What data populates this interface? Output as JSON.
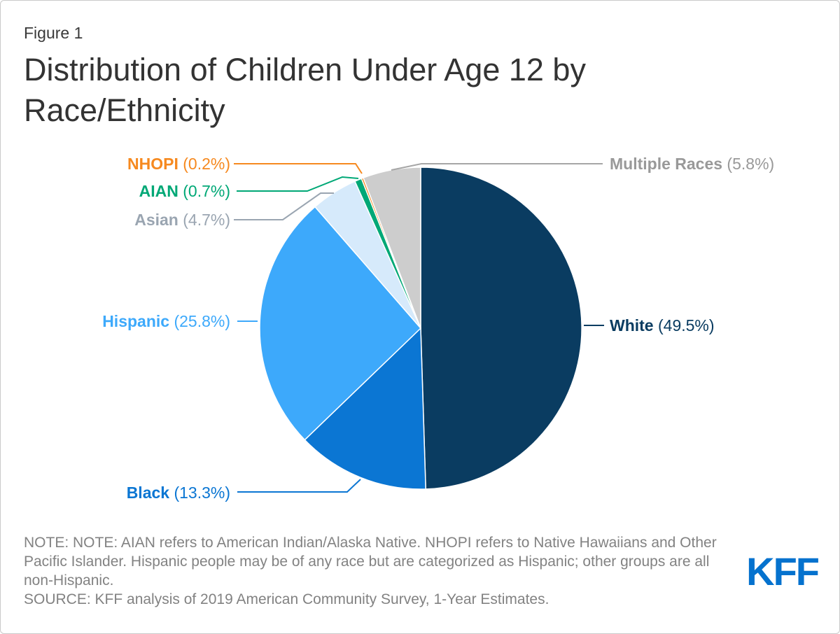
{
  "figure_label": "Figure 1",
  "title": "Distribution of Children Under Age 12 by Race/Ethnicity",
  "note": "NOTE: NOTE: AIAN refers to American Indian/Alaska Native. NHOPI refers to Native Hawaiians and Other Pacific Islander. Hispanic people may be of any race but are categorized as Hispanic; other groups are all non-Hispanic.",
  "source": "SOURCE: KFF analysis of 2019 American Community Survey, 1-Year Estimates.",
  "logo_text": "KFF",
  "colors": {
    "logo_blue": "#0572CE",
    "title_text": "#333333",
    "note_text": "#828282",
    "frame_border": "#C9C9C9",
    "slice_stroke": "#FFFFFF"
  },
  "chart_data": {
    "type": "pie",
    "title": "Distribution of Children Under Age 12 by Race/Ethnicity",
    "start_angle_deg_from_top": 0,
    "direction": "clockwise",
    "legend_position": "callout-labels",
    "series": [
      {
        "slug": "white",
        "label": "White",
        "value": 49.5,
        "value_text": "(49.5%)",
        "color": "#0A3C61",
        "label_color": "#0A3C61"
      },
      {
        "slug": "black",
        "label": "Black",
        "value": 13.3,
        "value_text": "(13.3%)",
        "color": "#0B76D3",
        "label_color": "#0B76D3"
      },
      {
        "slug": "hispanic",
        "label": "Hispanic",
        "value": 25.8,
        "value_text": "(25.8%)",
        "color": "#3DA9FB",
        "label_color": "#3DA9FB"
      },
      {
        "slug": "asian",
        "label": "Asian",
        "value": 4.7,
        "value_text": "(4.7%)",
        "color": "#D6EAFB",
        "label_color": "#9AA5B1",
        "line_color": "#9AA5B1"
      },
      {
        "slug": "aian",
        "label": "AIAN",
        "value": 0.7,
        "value_text": "(0.7%)",
        "color": "#00A876",
        "label_color": "#00A876"
      },
      {
        "slug": "nhopi",
        "label": "NHOPI",
        "value": 0.2,
        "value_text": "(0.2%)",
        "color": "#F6891F",
        "label_color": "#F6891F"
      },
      {
        "slug": "multiple-races",
        "label": "Multiple Races",
        "value": 5.8,
        "value_text": "(5.8%)",
        "color": "#CDCDCD",
        "label_color": "#999999",
        "line_color": "#A6A6A6"
      }
    ]
  }
}
